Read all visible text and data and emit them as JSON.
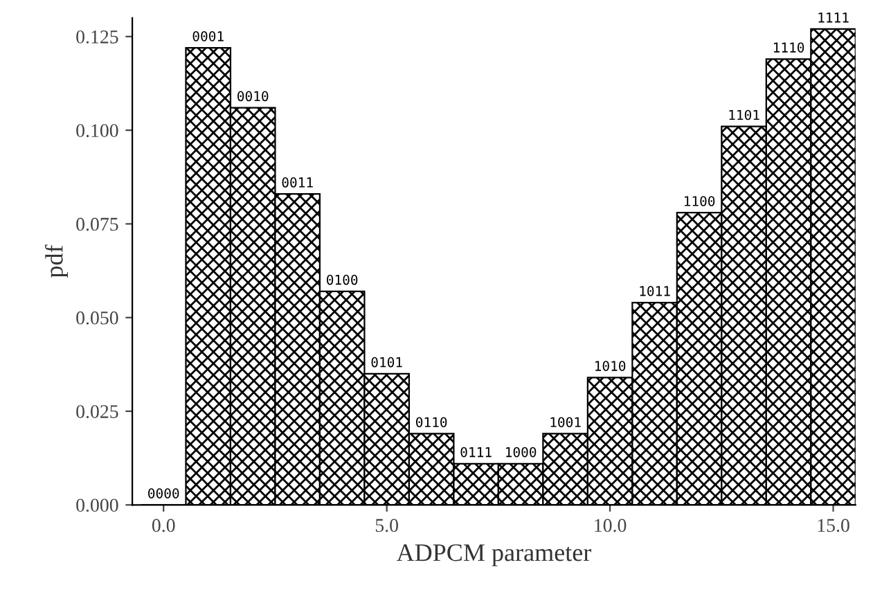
{
  "chart_data": {
    "type": "bar",
    "xlabel": "ADPCM parameter",
    "ylabel": "pdf",
    "x": [
      0,
      1,
      2,
      3,
      4,
      5,
      6,
      7,
      8,
      9,
      10,
      11,
      12,
      13,
      14,
      15
    ],
    "values": [
      0.0,
      0.122,
      0.106,
      0.083,
      0.057,
      0.035,
      0.019,
      0.011,
      0.011,
      0.019,
      0.034,
      0.054,
      0.078,
      0.101,
      0.119,
      0.127
    ],
    "annotations": [
      {
        "text": "0000",
        "x": 0,
        "y": 0.0
      },
      {
        "text": "0001",
        "x": 1,
        "y": 0.122
      },
      {
        "text": "0010",
        "x": 2,
        "y": 0.106
      },
      {
        "text": "0011",
        "x": 3,
        "y": 0.083
      },
      {
        "text": "0100",
        "x": 4,
        "y": 0.057
      },
      {
        "text": "0101",
        "x": 5,
        "y": 0.035
      },
      {
        "text": "0110",
        "x": 6,
        "y": 0.019
      },
      {
        "text": "0111",
        "x": 7,
        "y": 0.011
      },
      {
        "text": "1000",
        "x": 8,
        "y": 0.011
      },
      {
        "text": "1001",
        "x": 9,
        "y": 0.019
      },
      {
        "text": "1010",
        "x": 10,
        "y": 0.034
      },
      {
        "text": "1011",
        "x": 11,
        "y": 0.054
      },
      {
        "text": "1100",
        "x": 12,
        "y": 0.078
      },
      {
        "text": "1101",
        "x": 13,
        "y": 0.101
      },
      {
        "text": "1110",
        "x": 14,
        "y": 0.119
      },
      {
        "text": "1111",
        "x": 15,
        "y": 0.127
      }
    ],
    "color": "#000000",
    "xlim": [
      -0.7,
      15.5
    ],
    "ylim": [
      0,
      0.13
    ],
    "xticks": [
      {
        "value": 0,
        "label": "0.0"
      },
      {
        "value": 5,
        "label": "5.0"
      },
      {
        "value": 10,
        "label": "10.0"
      },
      {
        "value": 15,
        "label": "15.0"
      }
    ],
    "yticks": [
      {
        "value": 0,
        "label": "0.000"
      },
      {
        "value": 0.025,
        "label": "0.025"
      },
      {
        "value": 0.05,
        "label": "0.050"
      },
      {
        "value": 0.075,
        "label": "0.075"
      },
      {
        "value": 0.1,
        "label": "0.100"
      },
      {
        "value": 0.125,
        "label": "0.125"
      }
    ],
    "grid": false,
    "legend": false
  }
}
